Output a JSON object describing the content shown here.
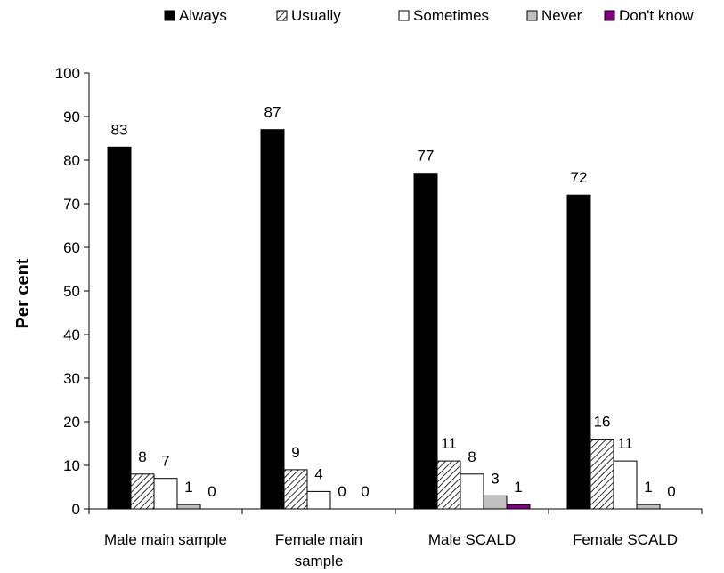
{
  "chart_data": {
    "type": "bar",
    "title": "",
    "xlabel": "",
    "ylabel": "Per cent",
    "ylim": [
      0,
      100
    ],
    "yticks": [
      0,
      10,
      20,
      30,
      40,
      50,
      60,
      70,
      80,
      90,
      100
    ],
    "categories": [
      [
        "Male main sample"
      ],
      [
        "Female main",
        "sample"
      ],
      [
        "Male SCALD"
      ],
      [
        "Female SCALD"
      ]
    ],
    "series": [
      {
        "name": "Always",
        "color": "#000000",
        "pattern": "solid",
        "values": [
          83,
          87,
          77,
          72
        ]
      },
      {
        "name": "Usually",
        "color": "#ffffff",
        "pattern": "hatch",
        "values": [
          8,
          9,
          11,
          16
        ]
      },
      {
        "name": "Sometimes",
        "color": "#ffffff",
        "pattern": "solid",
        "values": [
          7,
          4,
          8,
          11
        ]
      },
      {
        "name": "Never",
        "color": "#c0c0c0",
        "pattern": "solid",
        "values": [
          1,
          0,
          3,
          1
        ]
      },
      {
        "name": "Don't know",
        "color": "#800080",
        "pattern": "solid",
        "values": [
          0,
          0,
          1,
          0
        ]
      }
    ],
    "grid": false,
    "legend": "top"
  }
}
